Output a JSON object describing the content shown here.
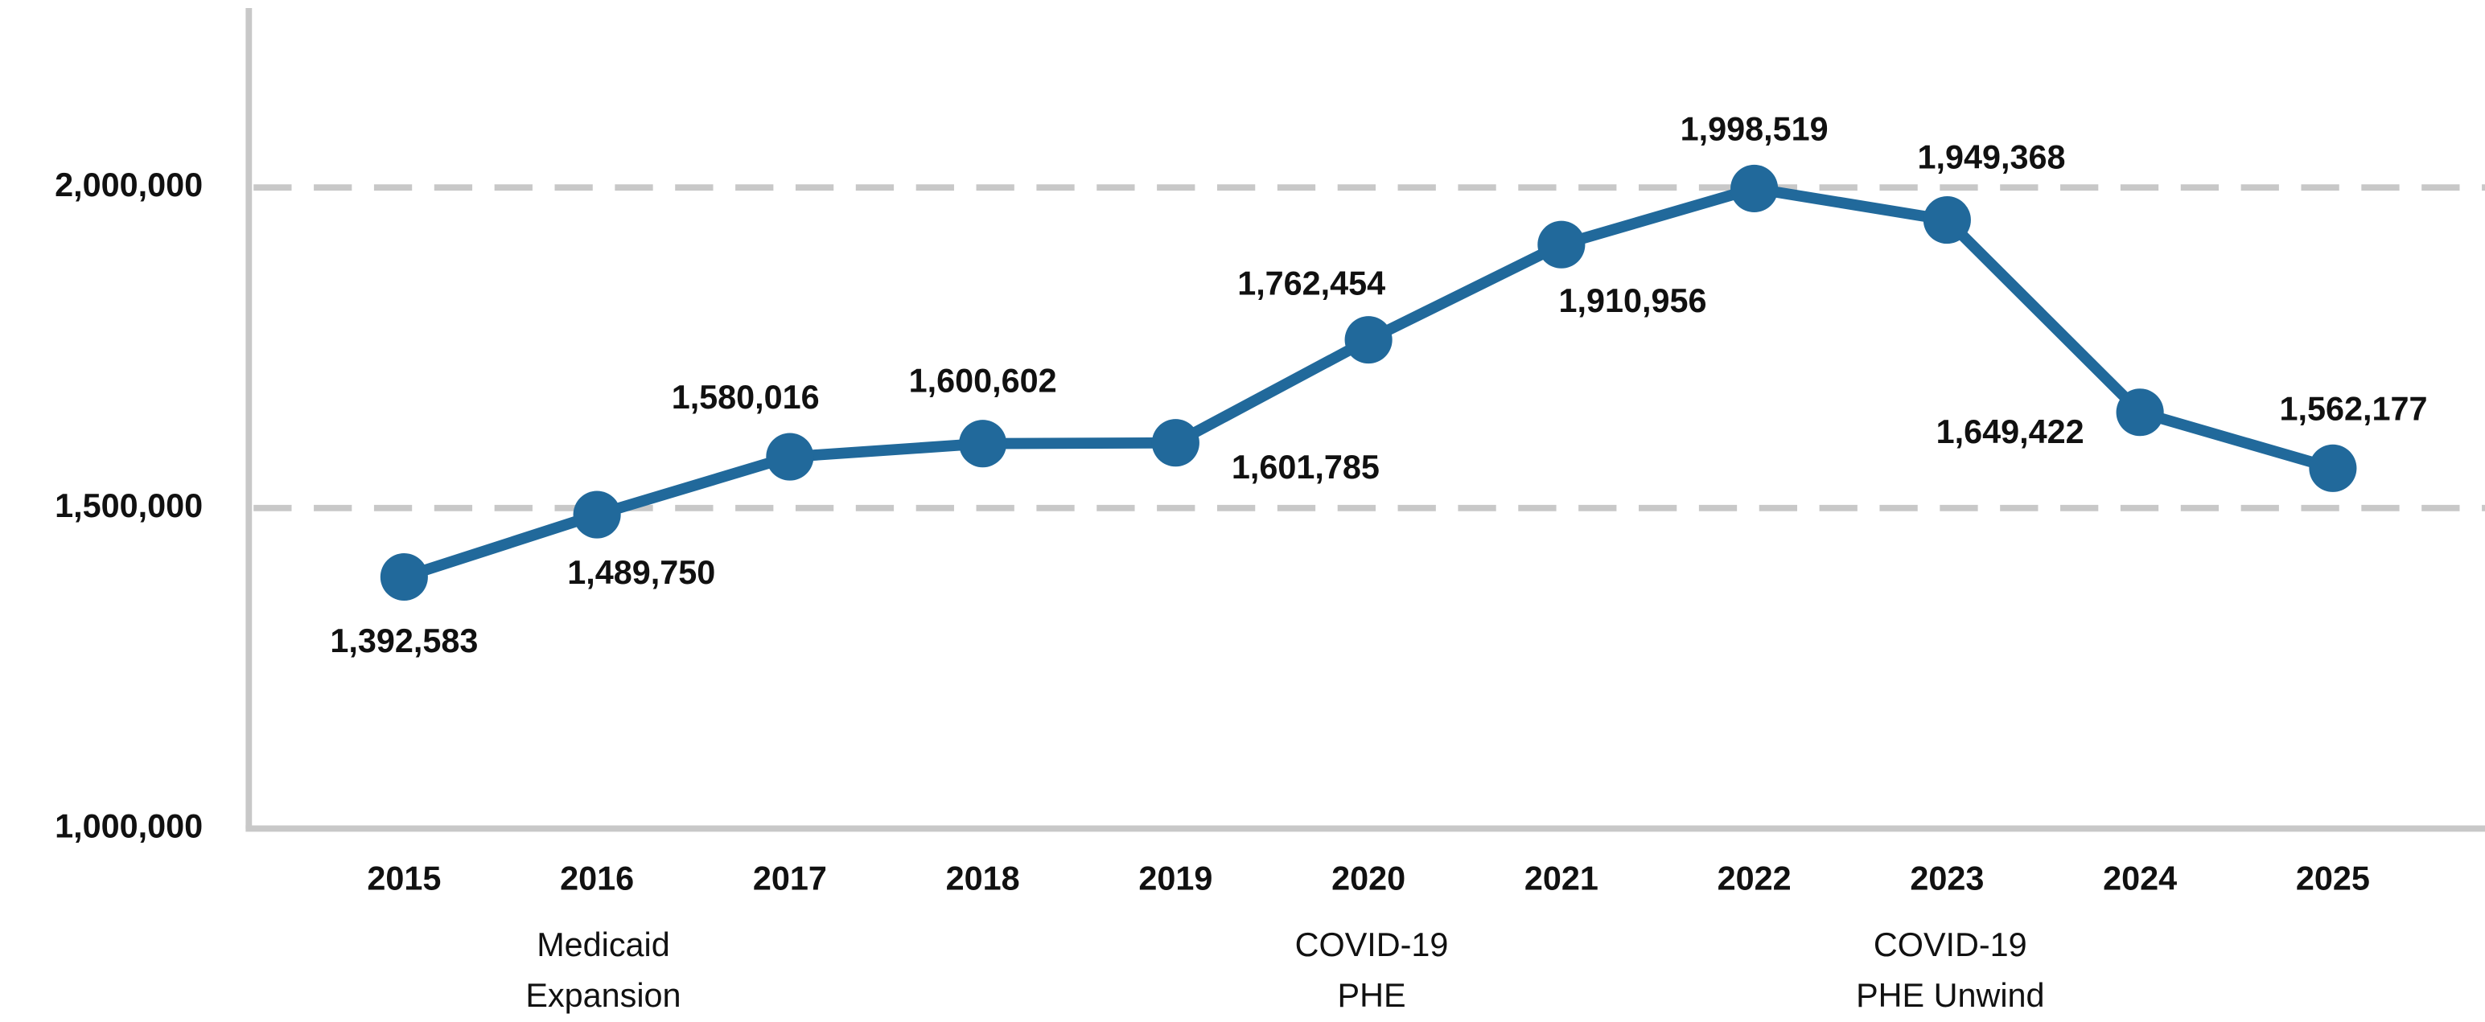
{
  "chart_data": {
    "type": "line",
    "categories": [
      "2015",
      "2016",
      "2017",
      "2018",
      "2019",
      "2020",
      "2021",
      "2022",
      "2023",
      "2024",
      "2025"
    ],
    "series": [
      {
        "color": "#21699b",
        "values": [
          1392583,
          1489750,
          1580016,
          1600602,
          1601785,
          1762454,
          1910956,
          1998519,
          1949368,
          1649422,
          1562177
        ],
        "value_labels": [
          "1,392,583",
          "1,489,750",
          "1,580,016",
          "1,600,602",
          "1,601,785",
          "1,762,454",
          "1,910,956",
          "1,998,519",
          "1,949,368",
          "1,649,422",
          "1,562,177"
        ]
      }
    ],
    "ylim": [
      1000000,
      2280000
    ],
    "yticks": [
      {
        "value": 1000000,
        "label": "1,000,000"
      },
      {
        "value": 1500000,
        "label": "1,500,000"
      },
      {
        "value": 2000000,
        "label": "2,000,000"
      }
    ],
    "grid": true,
    "annotations": [
      {
        "lines": [
          "Medicaid",
          "Expansion"
        ]
      },
      {
        "lines": [
          "COVID-19",
          "PHE"
        ]
      },
      {
        "lines": [
          "COVID-19",
          "PHE Unwind"
        ]
      }
    ]
  }
}
